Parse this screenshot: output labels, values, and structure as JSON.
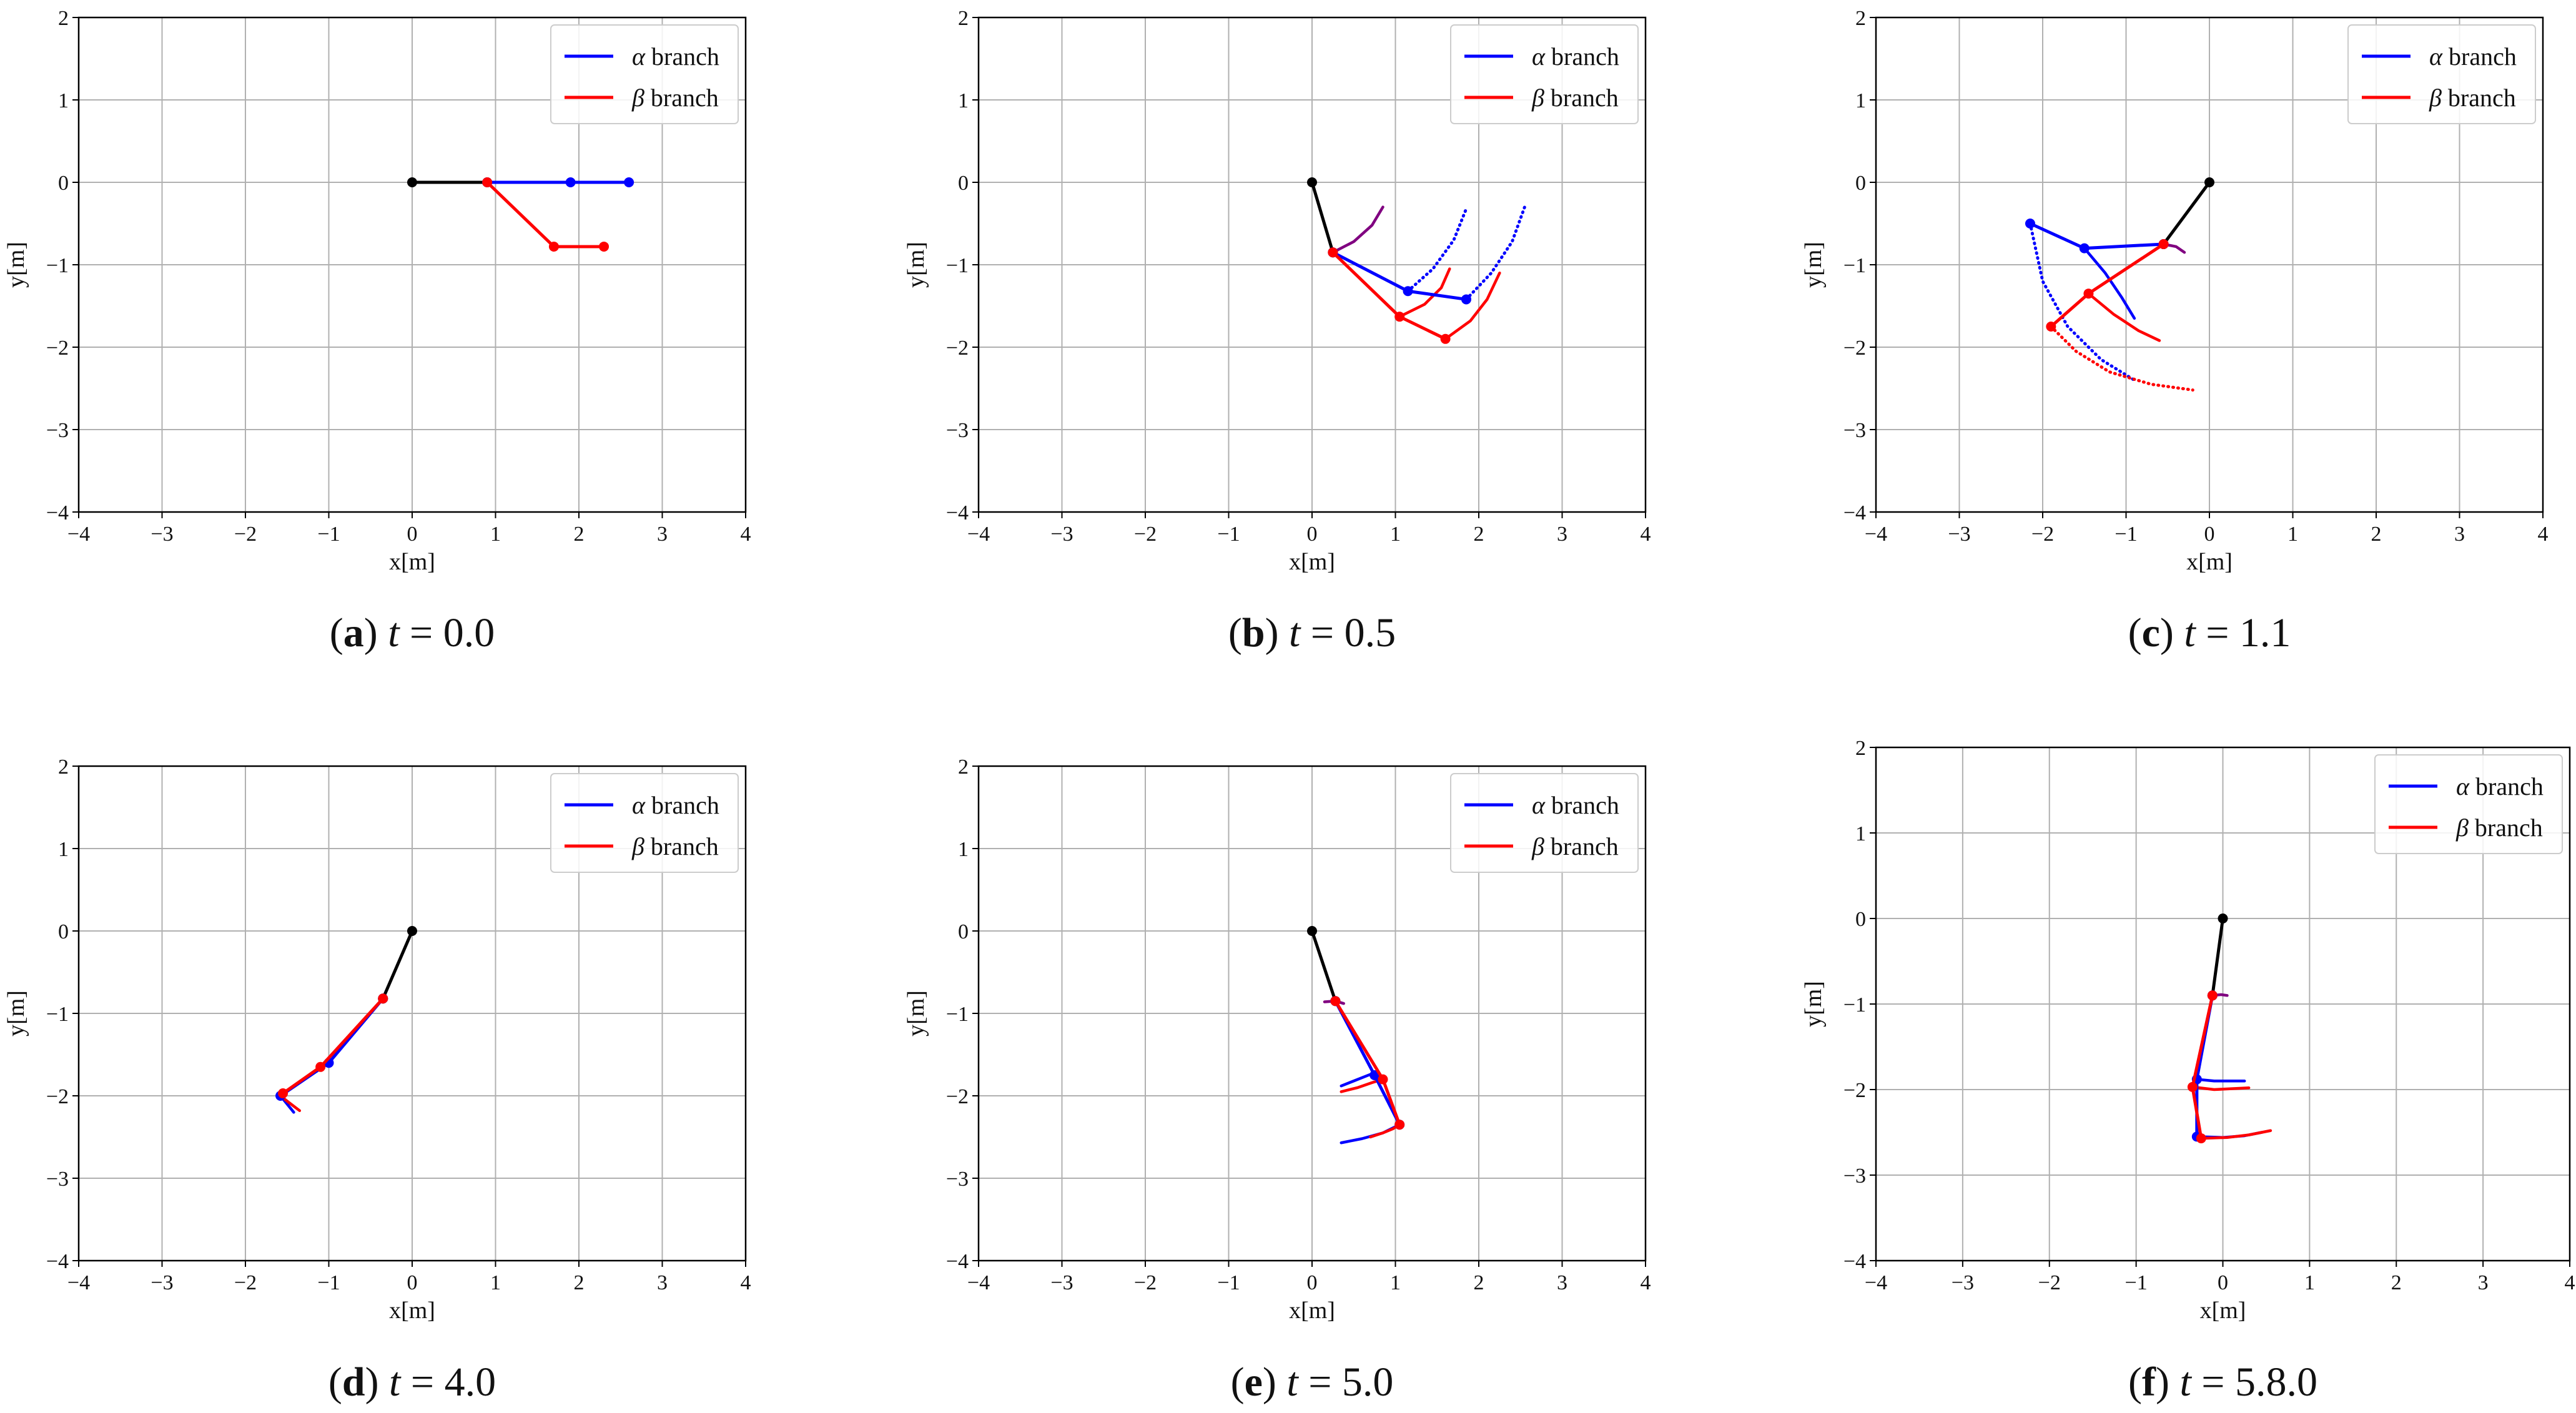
{
  "colors": {
    "alpha": "#0000ff",
    "beta": "#ff0000",
    "body": "#000000",
    "overlap": "#800080",
    "grid": "#b0b0b0"
  },
  "chart_data": [
    {
      "id": "a",
      "type": "line",
      "caption_label": "(a)",
      "caption_var": "t",
      "caption_eq": "= 0.0",
      "xlabel": "x[m]",
      "ylabel": "y[m]",
      "xlim": [
        -4,
        4
      ],
      "ylim": [
        -4,
        2
      ],
      "xticks": [
        "−4",
        "−3",
        "−2",
        "−1",
        "0",
        "1",
        "2",
        "3",
        "4"
      ],
      "yticks": [
        "−4",
        "−3",
        "−2",
        "−1",
        "0",
        "1",
        "2"
      ],
      "legend": {
        "position": "top-right",
        "entries": [
          {
            "series": "alpha",
            "greek": "α",
            "label": "branch"
          },
          {
            "series": "beta",
            "greek": "β",
            "label": "branch"
          }
        ]
      },
      "series": [
        {
          "name": "body",
          "color": "body",
          "markers": true,
          "x": [
            0,
            0.9
          ],
          "y": [
            0,
            0
          ]
        },
        {
          "name": "alpha links",
          "color": "alpha",
          "markers": true,
          "x": [
            0.9,
            1.9,
            2.6
          ],
          "y": [
            0,
            0,
            0
          ]
        },
        {
          "name": "beta links",
          "color": "beta",
          "markers": true,
          "x": [
            0.9,
            1.7,
            2.3
          ],
          "y": [
            0,
            -0.78,
            -0.78
          ]
        }
      ]
    },
    {
      "id": "b",
      "type": "line",
      "caption_label": "(b)",
      "caption_var": "t",
      "caption_eq": "= 0.5",
      "xlabel": "x[m]",
      "ylabel": "y[m]",
      "xlim": [
        -4,
        4
      ],
      "ylim": [
        -4,
        2
      ],
      "xticks": [
        "−4",
        "−3",
        "−2",
        "−1",
        "0",
        "1",
        "2",
        "3",
        "4"
      ],
      "yticks": [
        "−4",
        "−3",
        "−2",
        "−1",
        "0",
        "1",
        "2"
      ],
      "legend": {
        "position": "top-right",
        "entries": [
          {
            "series": "alpha",
            "greek": "α",
            "label": "branch"
          },
          {
            "series": "beta",
            "greek": "β",
            "label": "branch"
          }
        ]
      },
      "series": [
        {
          "name": "body",
          "color": "body",
          "markers": true,
          "x": [
            0,
            0.25
          ],
          "y": [
            0,
            -0.85
          ]
        },
        {
          "name": "body trace",
          "color": "overlap",
          "x": [
            0.25,
            0.5,
            0.72,
            0.85
          ],
          "y": [
            -0.85,
            -0.72,
            -0.52,
            -0.3
          ]
        },
        {
          "name": "alpha trace 1",
          "color": "alpha",
          "dotted": true,
          "x": [
            1.15,
            1.45,
            1.7,
            1.85
          ],
          "y": [
            -1.32,
            -1.05,
            -0.7,
            -0.32
          ]
        },
        {
          "name": "alpha trace 2",
          "color": "alpha",
          "dotted": true,
          "x": [
            1.85,
            2.15,
            2.4,
            2.55
          ],
          "y": [
            -1.42,
            -1.1,
            -0.72,
            -0.3
          ]
        },
        {
          "name": "beta trace 1",
          "color": "beta",
          "x": [
            1.05,
            1.35,
            1.55,
            1.65
          ],
          "y": [
            -1.63,
            -1.48,
            -1.28,
            -1.05
          ]
        },
        {
          "name": "beta trace 2",
          "color": "beta",
          "x": [
            1.6,
            1.9,
            2.1,
            2.25
          ],
          "y": [
            -1.9,
            -1.68,
            -1.42,
            -1.1
          ]
        },
        {
          "name": "alpha links",
          "color": "alpha",
          "markers": true,
          "x": [
            0.25,
            1.15,
            1.85
          ],
          "y": [
            -0.85,
            -1.32,
            -1.42
          ]
        },
        {
          "name": "beta links",
          "color": "beta",
          "markers": true,
          "x": [
            0.25,
            1.05,
            1.6
          ],
          "y": [
            -0.85,
            -1.63,
            -1.9
          ]
        }
      ]
    },
    {
      "id": "c",
      "type": "line",
      "caption_label": "(c)",
      "caption_var": "t",
      "caption_eq": "= 1.1",
      "xlabel": "x[m]",
      "ylabel": "y[m]",
      "xlim": [
        -4,
        4
      ],
      "ylim": [
        -4,
        2
      ],
      "xticks": [
        "−4",
        "−3",
        "−2",
        "−1",
        "0",
        "1",
        "2",
        "3",
        "4"
      ],
      "yticks": [
        "−4",
        "−3",
        "−2",
        "−1",
        "0",
        "1",
        "2"
      ],
      "legend": {
        "position": "top-right",
        "entries": [
          {
            "series": "alpha",
            "greek": "α",
            "label": "branch"
          },
          {
            "series": "beta",
            "greek": "β",
            "label": "branch"
          }
        ]
      },
      "series": [
        {
          "name": "body",
          "color": "body",
          "markers": true,
          "x": [
            0,
            -0.55
          ],
          "y": [
            0,
            -0.75
          ]
        },
        {
          "name": "body trace",
          "color": "overlap",
          "x": [
            -0.55,
            -0.4,
            -0.3
          ],
          "y": [
            -0.75,
            -0.78,
            -0.85
          ]
        },
        {
          "name": "alpha trace 1",
          "color": "alpha",
          "x": [
            -1.5,
            -1.25,
            -1.05,
            -0.9
          ],
          "y": [
            -0.8,
            -1.1,
            -1.4,
            -1.65
          ]
        },
        {
          "name": "alpha trace 2",
          "color": "alpha",
          "dotted": true,
          "x": [
            -2.15,
            -2.0,
            -1.7,
            -1.3,
            -0.9
          ],
          "y": [
            -0.5,
            -1.2,
            -1.75,
            -2.15,
            -2.4
          ]
        },
        {
          "name": "beta trace 1",
          "color": "beta",
          "x": [
            -1.45,
            -1.15,
            -0.85,
            -0.6
          ],
          "y": [
            -1.35,
            -1.6,
            -1.8,
            -1.92
          ]
        },
        {
          "name": "beta trace 2",
          "color": "beta",
          "dotted": true,
          "x": [
            -1.9,
            -1.6,
            -1.2,
            -0.7,
            -0.2
          ],
          "y": [
            -1.75,
            -2.05,
            -2.3,
            -2.45,
            -2.52
          ]
        },
        {
          "name": "alpha links",
          "color": "alpha",
          "markers": true,
          "x": [
            -0.55,
            -1.5,
            -2.15
          ],
          "y": [
            -0.75,
            -0.8,
            -0.5
          ]
        },
        {
          "name": "beta links",
          "color": "beta",
          "markers": true,
          "x": [
            -0.55,
            -1.45,
            -1.9
          ],
          "y": [
            -0.75,
            -1.35,
            -1.75
          ]
        }
      ]
    },
    {
      "id": "d",
      "type": "line",
      "caption_label": "(d)",
      "caption_var": "t",
      "caption_eq": "= 4.0",
      "xlabel": "x[m]",
      "ylabel": "y[m]",
      "xlim": [
        -4,
        4
      ],
      "ylim": [
        -4,
        2
      ],
      "xticks": [
        "−4",
        "−3",
        "−2",
        "−1",
        "0",
        "1",
        "2",
        "3",
        "4"
      ],
      "yticks": [
        "−4",
        "−3",
        "−2",
        "−1",
        "0",
        "1",
        "2"
      ],
      "legend": {
        "position": "top-right",
        "entries": [
          {
            "series": "alpha",
            "greek": "α",
            "label": "branch"
          },
          {
            "series": "beta",
            "greek": "β",
            "label": "branch"
          }
        ]
      },
      "series": [
        {
          "name": "body",
          "color": "body",
          "markers": true,
          "x": [
            0,
            -0.35
          ],
          "y": [
            0,
            -0.82
          ]
        },
        {
          "name": "alpha trace",
          "color": "alpha",
          "x": [
            -1.58,
            -1.5,
            -1.42
          ],
          "y": [
            -2.0,
            -2.1,
            -2.2
          ]
        },
        {
          "name": "beta trace",
          "color": "beta",
          "x": [
            -1.58,
            -1.48,
            -1.35
          ],
          "y": [
            -2.0,
            -2.08,
            -2.18
          ]
        },
        {
          "name": "alpha links",
          "color": "alpha",
          "markers": true,
          "x": [
            -0.35,
            -1.0,
            -1.58
          ],
          "y": [
            -0.82,
            -1.6,
            -2.0
          ]
        },
        {
          "name": "beta links",
          "color": "beta",
          "markers": true,
          "x": [
            -0.35,
            -1.1,
            -1.55
          ],
          "y": [
            -0.82,
            -1.65,
            -1.97
          ]
        }
      ]
    },
    {
      "id": "e",
      "type": "line",
      "caption_label": "(e)",
      "caption_var": "t",
      "caption_eq": "= 5.0",
      "xlabel": "x[m]",
      "ylabel": "y[m]",
      "xlim": [
        -4,
        4
      ],
      "ylim": [
        -4,
        2
      ],
      "xticks": [
        "−4",
        "−3",
        "−2",
        "−1",
        "0",
        "1",
        "2",
        "3",
        "4"
      ],
      "yticks": [
        "−4",
        "−3",
        "−2",
        "−1",
        "0",
        "1",
        "2"
      ],
      "legend": {
        "position": "top-right",
        "entries": [
          {
            "series": "alpha",
            "greek": "α",
            "label": "branch"
          },
          {
            "series": "beta",
            "greek": "β",
            "label": "branch"
          }
        ]
      },
      "series": [
        {
          "name": "body",
          "color": "body",
          "markers": true,
          "x": [
            0,
            0.28
          ],
          "y": [
            0,
            -0.85
          ]
        },
        {
          "name": "body trace",
          "color": "overlap",
          "x": [
            0.15,
            0.28,
            0.38
          ],
          "y": [
            -0.86,
            -0.85,
            -0.88
          ]
        },
        {
          "name": "alpha trace 1",
          "color": "alpha",
          "x": [
            0.35,
            0.5,
            0.65,
            0.75
          ],
          "y": [
            -1.88,
            -1.82,
            -1.76,
            -1.72
          ]
        },
        {
          "name": "alpha trace 2",
          "color": "alpha",
          "x": [
            0.35,
            0.6,
            0.85,
            1.05
          ],
          "y": [
            -2.57,
            -2.52,
            -2.45,
            -2.35
          ]
        },
        {
          "name": "beta trace 1",
          "color": "beta",
          "x": [
            0.35,
            0.55,
            0.72,
            0.85
          ],
          "y": [
            -1.95,
            -1.9,
            -1.84,
            -1.8
          ]
        },
        {
          "name": "beta trace 2",
          "color": "beta",
          "x": [
            0.7,
            0.85,
            0.97,
            1.05
          ],
          "y": [
            -2.5,
            -2.45,
            -2.4,
            -2.35
          ]
        },
        {
          "name": "alpha links",
          "color": "alpha",
          "markers": true,
          "x": [
            0.28,
            0.75,
            1.05
          ],
          "y": [
            -0.85,
            -1.75,
            -2.35
          ]
        },
        {
          "name": "beta links",
          "color": "beta",
          "markers": true,
          "x": [
            0.28,
            0.85,
            1.05
          ],
          "y": [
            -0.85,
            -1.8,
            -2.35
          ]
        }
      ]
    },
    {
      "id": "f",
      "type": "line",
      "caption_label": "(f)",
      "caption_var": "t",
      "caption_eq": "= 5.8.0",
      "xlabel": "x[m]",
      "ylabel": "y[m]",
      "xlim": [
        -4,
        4
      ],
      "ylim": [
        -4,
        2
      ],
      "xticks": [
        "−4",
        "−3",
        "−2",
        "−1",
        "0",
        "1",
        "2",
        "3",
        "4"
      ],
      "yticks": [
        "−4",
        "−3",
        "−2",
        "−1",
        "0",
        "1",
        "2"
      ],
      "legend": {
        "position": "top-right",
        "entries": [
          {
            "series": "alpha",
            "greek": "α",
            "label": "branch"
          },
          {
            "series": "beta",
            "greek": "β",
            "label": "branch"
          }
        ]
      },
      "series": [
        {
          "name": "body",
          "color": "body",
          "markers": true,
          "x": [
            0,
            -0.12
          ],
          "y": [
            0,
            -0.9
          ]
        },
        {
          "name": "body trace",
          "color": "overlap",
          "x": [
            -0.12,
            -0.02,
            0.05
          ],
          "y": [
            -0.9,
            -0.89,
            -0.9
          ]
        },
        {
          "name": "alpha trace 1",
          "color": "alpha",
          "x": [
            -0.3,
            -0.1,
            0.1,
            0.25
          ],
          "y": [
            -1.88,
            -1.9,
            -1.9,
            -1.9
          ]
        },
        {
          "name": "alpha trace 2",
          "color": "alpha",
          "x": [
            -0.3,
            0.0,
            0.25,
            0.45
          ],
          "y": [
            -2.55,
            -2.56,
            -2.54,
            -2.5
          ]
        },
        {
          "name": "beta trace 1",
          "color": "beta",
          "x": [
            -0.35,
            -0.1,
            0.1,
            0.3
          ],
          "y": [
            -1.97,
            -2.0,
            -1.99,
            -1.98
          ]
        },
        {
          "name": "beta trace 2",
          "color": "beta",
          "x": [
            -0.25,
            0.05,
            0.3,
            0.55
          ],
          "y": [
            -2.57,
            -2.56,
            -2.53,
            -2.48
          ]
        },
        {
          "name": "alpha links",
          "color": "alpha",
          "markers": true,
          "x": [
            -0.12,
            -0.3,
            -0.3
          ],
          "y": [
            -0.9,
            -1.88,
            -2.55
          ]
        },
        {
          "name": "beta links",
          "color": "beta",
          "markers": true,
          "x": [
            -0.12,
            -0.35,
            -0.25
          ],
          "y": [
            -0.9,
            -1.97,
            -2.57
          ]
        }
      ]
    }
  ]
}
